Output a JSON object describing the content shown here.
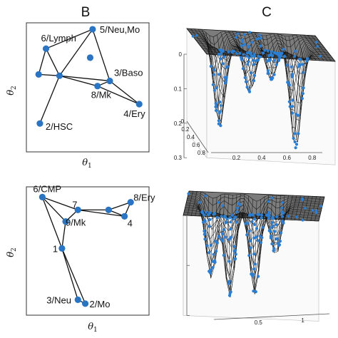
{
  "panels": {
    "b": {
      "letter": "B"
    },
    "c": {
      "letter": "C"
    }
  },
  "axes": {
    "x_symbol": "θ",
    "x_sub": "1",
    "y_symbol": "θ",
    "y_sub": "2"
  },
  "chart_data": [
    {
      "type": "network",
      "panel": "B-top",
      "nodes": [
        {
          "id": "n5",
          "label": "5/Neu,Mo",
          "x": 0.54,
          "y": 0.95
        },
        {
          "id": "n6",
          "label": "6/Lymph",
          "x": 0.16,
          "y": 0.8
        },
        {
          "id": "nA",
          "label": "",
          "x": 0.52,
          "y": 0.73
        },
        {
          "id": "nB",
          "label": "",
          "x": 0.1,
          "y": 0.6
        },
        {
          "id": "nC",
          "label": "",
          "x": 0.27,
          "y": 0.59
        },
        {
          "id": "n3",
          "label": "3/Baso",
          "x": 0.68,
          "y": 0.55
        },
        {
          "id": "n8",
          "label": "8/Mk",
          "x": 0.58,
          "y": 0.51
        },
        {
          "id": "n4",
          "label": "4/Ery",
          "x": 0.92,
          "y": 0.37
        },
        {
          "id": "n2",
          "label": "2/HSC",
          "x": 0.11,
          "y": 0.22
        }
      ],
      "edges": [
        [
          "n5",
          "n6"
        ],
        [
          "n5",
          "nC"
        ],
        [
          "n5",
          "n3"
        ],
        [
          "n6",
          "nB"
        ],
        [
          "n6",
          "nC"
        ],
        [
          "nB",
          "nC"
        ],
        [
          "nC",
          "n3"
        ],
        [
          "nC",
          "n8"
        ],
        [
          "n8",
          "n3"
        ],
        [
          "n3",
          "n4"
        ],
        [
          "n8",
          "n4"
        ],
        [
          "nC",
          "n2"
        ]
      ]
    },
    {
      "type": "network",
      "panel": "B-bottom",
      "nodes": [
        {
          "id": "n6",
          "label": "6/CMP",
          "x": 0.13,
          "y": 0.92
        },
        {
          "id": "n7",
          "label": "7",
          "x": 0.42,
          "y": 0.82
        },
        {
          "id": "n8",
          "label": "8/Ery",
          "x": 0.85,
          "y": 0.88
        },
        {
          "id": "n4",
          "label": "4",
          "x": 0.8,
          "y": 0.77
        },
        {
          "id": "nD",
          "label": "",
          "x": 0.67,
          "y": 0.82
        },
        {
          "id": "n9",
          "label": "9/Mk",
          "x": 0.32,
          "y": 0.73
        },
        {
          "id": "n1",
          "label": "1",
          "x": 0.29,
          "y": 0.52
        },
        {
          "id": "n3",
          "label": "3/Neu",
          "x": 0.42,
          "y": 0.12
        },
        {
          "id": "n2",
          "label": "2/Mo",
          "x": 0.48,
          "y": 0.09
        }
      ],
      "edges": [
        [
          "n6",
          "n7"
        ],
        [
          "n7",
          "nD"
        ],
        [
          "nD",
          "n8"
        ],
        [
          "nD",
          "n4"
        ],
        [
          "n8",
          "n4"
        ],
        [
          "n7",
          "n4"
        ],
        [
          "n6",
          "n9"
        ],
        [
          "n7",
          "n9"
        ],
        [
          "n6",
          "n1"
        ],
        [
          "n9",
          "n1"
        ],
        [
          "n1",
          "n3"
        ],
        [
          "n1",
          "n2"
        ],
        [
          "n3",
          "n2"
        ]
      ]
    },
    {
      "type": "surface3d",
      "panel": "C-top",
      "z_ticks": [
        "0",
        "0.1",
        "0.2",
        "0.3"
      ],
      "x_ticks": [
        "0.2",
        "0.4",
        "0.6",
        "0.8"
      ],
      "y_ticks": [
        "0",
        "0.2",
        "0.4",
        "0.6",
        "0.8"
      ],
      "wells": [
        {
          "x": 0.2,
          "depth": 0.28
        },
        {
          "x": 0.42,
          "depth": 0.16
        },
        {
          "x": 0.6,
          "depth": 0.12
        },
        {
          "x": 0.78,
          "depth": 0.33
        }
      ]
    },
    {
      "type": "surface3d",
      "panel": "C-bottom",
      "z_ticks": [
        "",
        "",
        ""
      ],
      "x_ticks": [
        "0.5",
        "1"
      ],
      "wells": [
        {
          "x": 0.18,
          "depth": 0.28
        },
        {
          "x": 0.32,
          "depth": 0.34
        },
        {
          "x": 0.5,
          "depth": 0.33
        },
        {
          "x": 0.66,
          "depth": 0.18
        }
      ]
    }
  ],
  "colors": {
    "node": "#2a74c4",
    "edge": "#111111",
    "surface_mesh": "#1c1c1c",
    "surface_point": "#2a7fd4"
  }
}
